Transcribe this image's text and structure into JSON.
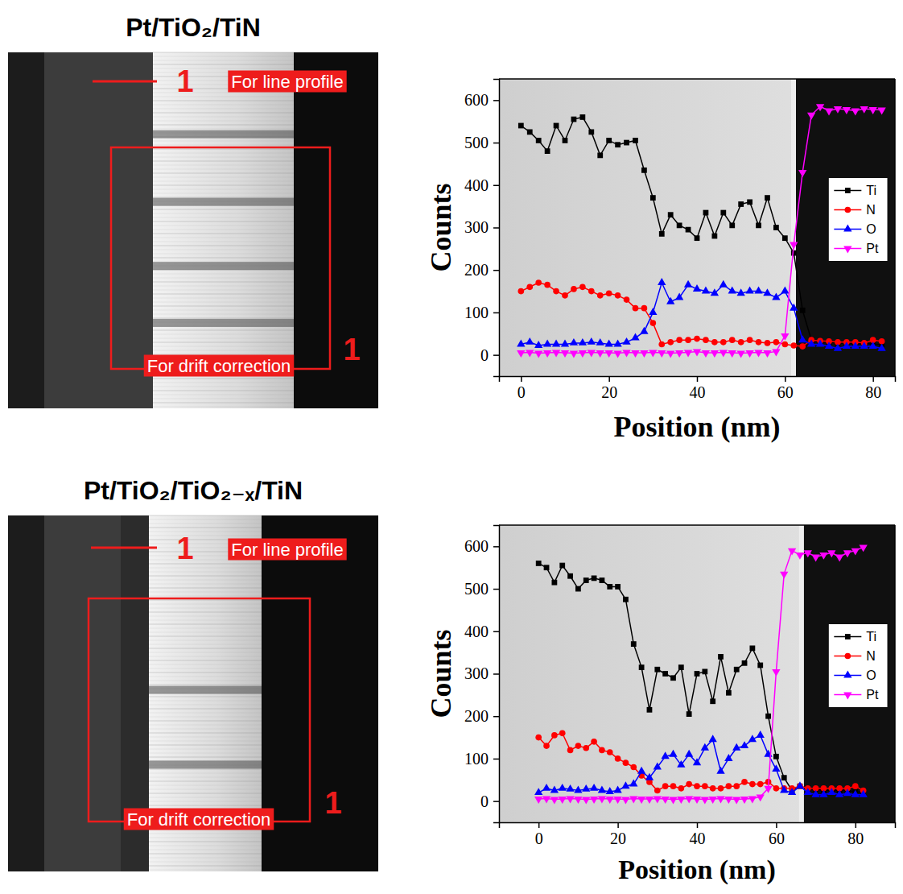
{
  "chart_data": [
    {
      "type": "line",
      "title": "Pt/TiO₂/TiN",
      "annotations": [
        "1",
        "For line profile",
        "1",
        "For drift correction"
      ],
      "x_label": "Position (nm)",
      "y_label": "Counts",
      "x": [
        0,
        2,
        4,
        6,
        8,
        10,
        12,
        14,
        16,
        18,
        20,
        22,
        24,
        26,
        28,
        30,
        32,
        34,
        36,
        38,
        40,
        42,
        44,
        46,
        48,
        50,
        52,
        54,
        56,
        58,
        60,
        62,
        64,
        66,
        68,
        70,
        72,
        74,
        76,
        78,
        80,
        82
      ],
      "series": [
        {
          "name": "Ti",
          "color": "#000000",
          "marker": "square",
          "values": [
            540,
            525,
            505,
            480,
            540,
            505,
            555,
            560,
            525,
            470,
            505,
            495,
            500,
            505,
            435,
            370,
            285,
            330,
            305,
            295,
            275,
            335,
            280,
            335,
            305,
            355,
            360,
            305,
            370,
            300,
            275,
            240,
            105,
            35,
            30,
            30,
            28,
            28,
            25,
            28,
            25,
            25
          ]
        },
        {
          "name": "N",
          "color": "#ff0000",
          "marker": "circle",
          "values": [
            150,
            160,
            170,
            165,
            150,
            140,
            155,
            160,
            150,
            140,
            145,
            140,
            130,
            110,
            110,
            75,
            25,
            30,
            35,
            35,
            38,
            35,
            30,
            30,
            35,
            30,
            35,
            30,
            28,
            30,
            25,
            22,
            20,
            35,
            33,
            32,
            30,
            30,
            30,
            28,
            35,
            32
          ]
        },
        {
          "name": "O",
          "color": "#0000ff",
          "marker": "triangle-up",
          "values": [
            25,
            30,
            22,
            25,
            25,
            25,
            28,
            28,
            30,
            28,
            25,
            25,
            30,
            40,
            55,
            100,
            170,
            125,
            135,
            165,
            155,
            150,
            145,
            165,
            150,
            145,
            150,
            150,
            145,
            135,
            150,
            110,
            35,
            25,
            25,
            20,
            15,
            20,
            20,
            20,
            20,
            15
          ]
        },
        {
          "name": "Pt",
          "color": "#ff00ff",
          "marker": "triangle-down",
          "values": [
            5,
            6,
            4,
            5,
            6,
            5,
            4,
            5,
            6,
            5,
            5,
            4,
            6,
            5,
            5,
            6,
            5,
            4,
            5,
            6,
            8,
            5,
            5,
            6,
            5,
            4,
            5,
            6,
            5,
            8,
            45,
            260,
            430,
            565,
            585,
            575,
            580,
            578,
            575,
            580,
            578,
            577
          ]
        }
      ],
      "xlim": [
        -5,
        85
      ],
      "xticks": [
        0,
        20,
        40,
        60,
        80
      ],
      "ylim": [
        -50,
        650
      ],
      "yticks": [
        0,
        100,
        200,
        300,
        400,
        500,
        600
      ],
      "legend": "right"
    },
    {
      "type": "line",
      "title": "Pt/TiO₂/TiO₂₋ₓ/TiN",
      "annotations": [
        "1",
        "For line profile",
        "1",
        "For drift correction"
      ],
      "x_label": "Position (nm)",
      "y_label": "Counts",
      "x": [
        0,
        2,
        4,
        6,
        8,
        10,
        12,
        14,
        16,
        18,
        20,
        22,
        24,
        26,
        28,
        30,
        32,
        34,
        36,
        38,
        40,
        42,
        44,
        46,
        48,
        50,
        52,
        54,
        56,
        58,
        60,
        62,
        64,
        66,
        68,
        70,
        72,
        74,
        76,
        78,
        80,
        82
      ],
      "series": [
        {
          "name": "Ti",
          "color": "#000000",
          "marker": "square",
          "values": [
            560,
            550,
            515,
            555,
            530,
            500,
            520,
            525,
            520,
            505,
            505,
            475,
            370,
            315,
            215,
            310,
            300,
            290,
            315,
            205,
            300,
            305,
            235,
            340,
            255,
            310,
            325,
            360,
            320,
            200,
            105,
            55,
            25,
            35,
            30,
            28,
            25,
            25,
            25,
            25,
            22,
            20
          ]
        },
        {
          "name": "N",
          "color": "#ff0000",
          "marker": "circle",
          "values": [
            150,
            130,
            155,
            160,
            120,
            130,
            125,
            140,
            120,
            115,
            100,
            90,
            80,
            60,
            45,
            25,
            35,
            35,
            30,
            40,
            35,
            35,
            30,
            30,
            35,
            35,
            45,
            40,
            40,
            45,
            30,
            30,
            30,
            35,
            30,
            30,
            30,
            30,
            30,
            30,
            35,
            25
          ]
        },
        {
          "name": "O",
          "color": "#0000ff",
          "marker": "triangle-up",
          "values": [
            20,
            30,
            25,
            30,
            28,
            25,
            28,
            30,
            25,
            22,
            25,
            35,
            40,
            70,
            55,
            80,
            105,
            110,
            85,
            110,
            90,
            125,
            145,
            70,
            100,
            125,
            130,
            145,
            155,
            110,
            75,
            25,
            20,
            35,
            20,
            15,
            15,
            20,
            15,
            18,
            15,
            15
          ]
        },
        {
          "name": "Pt",
          "color": "#ff00ff",
          "marker": "triangle-down",
          "values": [
            5,
            6,
            4,
            5,
            6,
            5,
            4,
            5,
            6,
            5,
            5,
            4,
            6,
            5,
            5,
            6,
            5,
            4,
            5,
            6,
            5,
            4,
            5,
            6,
            5,
            4,
            5,
            6,
            10,
            30,
            305,
            535,
            590,
            580,
            585,
            575,
            580,
            585,
            575,
            585,
            590,
            598
          ]
        }
      ],
      "xlim": [
        -10,
        90
      ],
      "xticks": [
        0,
        20,
        40,
        60,
        80
      ],
      "ylim": [
        -50,
        650
      ],
      "yticks": [
        0,
        100,
        200,
        300,
        400,
        500,
        600
      ],
      "legend": "right"
    }
  ]
}
